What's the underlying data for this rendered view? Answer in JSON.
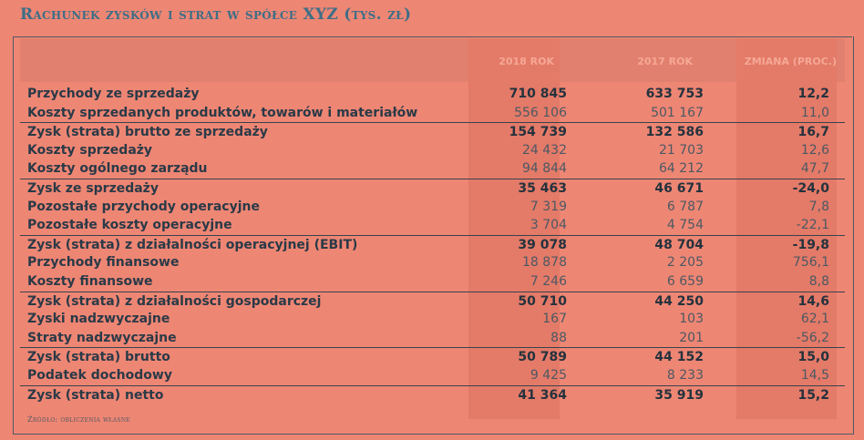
{
  "title": "Rachunek zysków i strat w spółce XYZ (tys. zł)",
  "columns": [
    "2018 ROK",
    "2017 ROK",
    "ZMIANA (PROC.)"
  ],
  "rows": [
    {
      "label": "Przychody ze sprzedaży",
      "v2018": "710 845",
      "v2017": "633 753",
      "change": "12,2",
      "bold": true
    },
    {
      "label": "Koszty sprzedanych produktów, towarów i materiałów",
      "v2018": "556 106",
      "v2017": "501 167",
      "change": "11,0",
      "bold": false
    },
    {
      "label": "Zysk (strata) brutto ze sprzedaży",
      "v2018": "154 739",
      "v2017": "132 586",
      "change": "16,7",
      "bold": true
    },
    {
      "label": "Koszty sprzedaży",
      "v2018": "24 432",
      "v2017": "21 703",
      "change": "12,6",
      "bold": false
    },
    {
      "label": "Koszty ogólnego zarządu",
      "v2018": "94 844",
      "v2017": "64 212",
      "change": "47,7",
      "bold": false
    },
    {
      "label": "Zysk ze sprzedaży",
      "v2018": "35 463",
      "v2017": "46 671",
      "change": "-24,0",
      "bold": true
    },
    {
      "label": "Pozostałe przychody operacyjne",
      "v2018": "7 319",
      "v2017": "6 787",
      "change": "7,8",
      "bold": false
    },
    {
      "label": "Pozostałe koszty operacyjne",
      "v2018": "3 704",
      "v2017": "4 754",
      "change": "-22,1",
      "bold": false
    },
    {
      "label": "Zysk (strata) z działalności operacyjnej (EBIT)",
      "v2018": "39 078",
      "v2017": "48 704",
      "change": "-19,8",
      "bold": true
    },
    {
      "label": "Przychody finansowe",
      "v2018": "18 878",
      "v2017": "2 205",
      "change": "756,1",
      "bold": false
    },
    {
      "label": "Koszty finansowe",
      "v2018": "7 246",
      "v2017": "6 659",
      "change": "8,8",
      "bold": false
    },
    {
      "label": "Zysk (strata) z działalności gospodarczej",
      "v2018": "50 710",
      "v2017": "44 250",
      "change": "14,6",
      "bold": true
    },
    {
      "label": "Zyski nadzwyczajne",
      "v2018": "167",
      "v2017": "103",
      "change": "62,1",
      "bold": false
    },
    {
      "label": "Straty nadzwyczajne",
      "v2018": "88",
      "v2017": "201",
      "change": "-56,2",
      "bold": false
    },
    {
      "label": "Zysk (strata) brutto",
      "v2018": "50 789",
      "v2017": "44 152",
      "change": "15,0",
      "bold": true
    },
    {
      "label": "Podatek dochodowy",
      "v2018": "9 425",
      "v2017": "8 233",
      "change": "14,5",
      "bold": false
    },
    {
      "label": "Zysk (strata) netto",
      "v2018": "41 364",
      "v2017": "35 919",
      "change": "15,2",
      "bold": true
    }
  ],
  "source": "Źródło: obliczenia własne"
}
